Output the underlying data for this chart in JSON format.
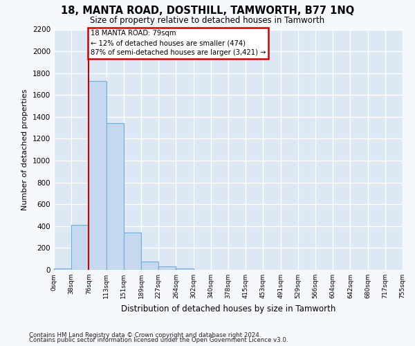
{
  "title": "18, MANTA ROAD, DOSTHILL, TAMWORTH, B77 1NQ",
  "subtitle": "Size of property relative to detached houses in Tamworth",
  "xlabel": "Distribution of detached houses by size in Tamworth",
  "ylabel": "Number of detached properties",
  "bin_labels": [
    "0sqm",
    "38sqm",
    "76sqm",
    "113sqm",
    "151sqm",
    "189sqm",
    "227sqm",
    "264sqm",
    "302sqm",
    "340sqm",
    "378sqm",
    "415sqm",
    "453sqm",
    "491sqm",
    "529sqm",
    "566sqm",
    "604sqm",
    "642sqm",
    "680sqm",
    "717sqm",
    "755sqm"
  ],
  "bar_values": [
    15,
    410,
    1730,
    1345,
    340,
    75,
    30,
    15,
    0,
    0,
    0,
    0,
    0,
    0,
    0,
    0,
    0,
    0,
    0,
    0
  ],
  "bar_color": "#c5d8f0",
  "bar_edge_color": "#6baed6",
  "property_line_x": 2,
  "property_line_label": "18 MANTA ROAD: 79sqm",
  "annotation_line1": "← 12% of detached houses are smaller (474)",
  "annotation_line2": "87% of semi-detached houses are larger (3,421) →",
  "annotation_box_color": "#ffffff",
  "annotation_box_edge_color": "#cc0000",
  "vline_color": "#cc0000",
  "bg_color": "#dde8f5",
  "grid_color": "#ffffff",
  "fig_bg_color": "#f5f8fc",
  "ylim": [
    0,
    2200
  ],
  "yticks": [
    0,
    200,
    400,
    600,
    800,
    1000,
    1200,
    1400,
    1600,
    1800,
    2000,
    2200
  ],
  "footer_line1": "Contains HM Land Registry data © Crown copyright and database right 2024.",
  "footer_line2": "Contains public sector information licensed under the Open Government Licence v3.0."
}
